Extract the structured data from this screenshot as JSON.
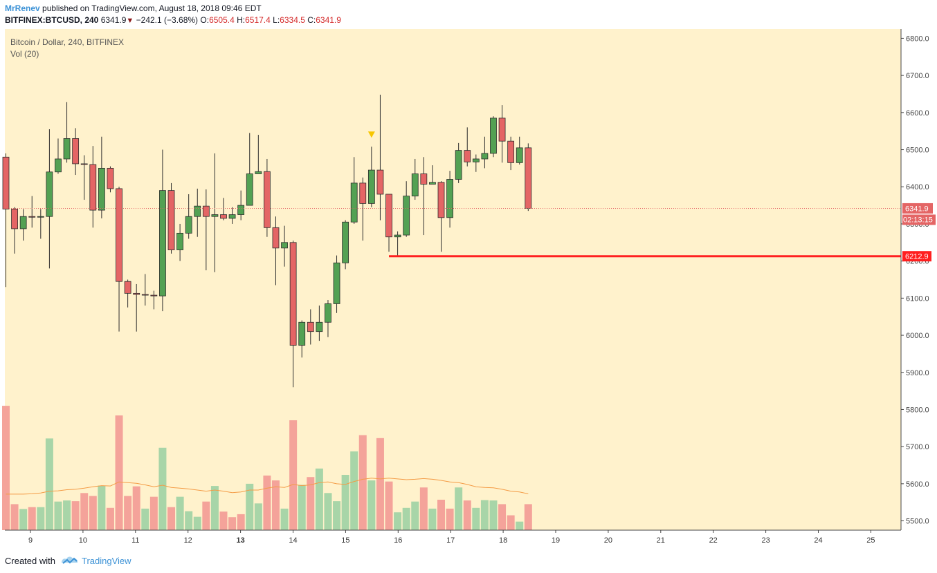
{
  "header": {
    "author": "MrRenev",
    "published": "published on TradingView.com, August 18, 2018 09:46 EDT",
    "symbol": "BITFINEX:BTCUSD, 240",
    "last": "6341.9",
    "change": "−242.1 (−3.68%)",
    "o_label": "O:",
    "o_value": "6505.4",
    "h_label": "H:",
    "h_value": "6517.4",
    "l_label": "L:",
    "l_value": "6334.5",
    "c_label": "C:",
    "c_value": "6341.9"
  },
  "legend": {
    "title": "Bitcoin / Dollar, 240, BITFINEX",
    "volume": "Vol (20)"
  },
  "footer": {
    "created_with": "Created with",
    "brand": "TradingView"
  },
  "colors": {
    "background": "#fff2cc",
    "up": "#53a153",
    "down": "#e46565",
    "vol_up": "#a8d5a8",
    "vol_down": "#f4a39a",
    "vol_ma": "#f49b45",
    "level": "#ff1f1f",
    "arrow": "#f7c600"
  },
  "chart_data": {
    "type": "candlestick",
    "title": "Bitcoin / Dollar, 240, BITFINEX",
    "ylim": [
      5475,
      6825
    ],
    "y_ticks": [
      "6800.0",
      "6700.0",
      "6600.0",
      "6500.0",
      "6400.0",
      "6300.0",
      "6200.0",
      "6100.0",
      "6000.0",
      "5900.0",
      "5800.0",
      "5700.0",
      "5600.0",
      "5500.0"
    ],
    "x_ticks": [
      "9",
      "10",
      "11",
      "12",
      "13",
      "14",
      "15",
      "16",
      "17",
      "18",
      "19",
      "20",
      "21",
      "22",
      "23",
      "24",
      "25"
    ],
    "last_price_label": "6341.9",
    "countdown_label": "02:13:15",
    "level_line": {
      "value": 6212.9,
      "label": "6212.9",
      "from_bar": 44
    },
    "marker": {
      "type": "arrow-down",
      "bar": 42
    },
    "candles": [
      {
        "o": 6480,
        "h": 6490,
        "l": 6130,
        "c": 6340
      },
      {
        "o": 6340,
        "h": 6345,
        "l": 6220,
        "c": 6287
      },
      {
        "o": 6287,
        "h": 6340,
        "l": 6255,
        "c": 6320
      },
      {
        "o": 6320,
        "h": 6375,
        "l": 6290,
        "c": 6318
      },
      {
        "o": 6318,
        "h": 6340,
        "l": 6260,
        "c": 6320
      },
      {
        "o": 6320,
        "h": 6555,
        "l": 6180,
        "c": 6440
      },
      {
        "o": 6440,
        "h": 6530,
        "l": 6435,
        "c": 6475
      },
      {
        "o": 6475,
        "h": 6628,
        "l": 6465,
        "c": 6530
      },
      {
        "o": 6530,
        "h": 6558,
        "l": 6432,
        "c": 6462
      },
      {
        "o": 6462,
        "h": 6485,
        "l": 6365,
        "c": 6460
      },
      {
        "o": 6460,
        "h": 6510,
        "l": 6290,
        "c": 6337
      },
      {
        "o": 6337,
        "h": 6535,
        "l": 6315,
        "c": 6450
      },
      {
        "o": 6450,
        "h": 6455,
        "l": 6385,
        "c": 6395
      },
      {
        "o": 6395,
        "h": 6400,
        "l": 6010,
        "c": 6145
      },
      {
        "o": 6145,
        "h": 6150,
        "l": 6075,
        "c": 6113
      },
      {
        "o": 6113,
        "h": 6138,
        "l": 6010,
        "c": 6110
      },
      {
        "o": 6110,
        "h": 6165,
        "l": 6080,
        "c": 6108
      },
      {
        "o": 6108,
        "h": 6120,
        "l": 6070,
        "c": 6106
      },
      {
        "o": 6106,
        "h": 6500,
        "l": 6065,
        "c": 6390
      },
      {
        "o": 6390,
        "h": 6410,
        "l": 6220,
        "c": 6230
      },
      {
        "o": 6230,
        "h": 6300,
        "l": 6200,
        "c": 6275
      },
      {
        "o": 6275,
        "h": 6380,
        "l": 6260,
        "c": 6320
      },
      {
        "o": 6320,
        "h": 6395,
        "l": 6265,
        "c": 6348
      },
      {
        "o": 6348,
        "h": 6393,
        "l": 6175,
        "c": 6320
      },
      {
        "o": 6320,
        "h": 6490,
        "l": 6170,
        "c": 6325
      },
      {
        "o": 6325,
        "h": 6370,
        "l": 6310,
        "c": 6315
      },
      {
        "o": 6315,
        "h": 6345,
        "l": 6300,
        "c": 6325
      },
      {
        "o": 6325,
        "h": 6390,
        "l": 6310,
        "c": 6350
      },
      {
        "o": 6350,
        "h": 6545,
        "l": 6355,
        "c": 6435
      },
      {
        "o": 6435,
        "h": 6540,
        "l": 6438,
        "c": 6441
      },
      {
        "o": 6441,
        "h": 6475,
        "l": 6265,
        "c": 6290
      },
      {
        "o": 6290,
        "h": 6320,
        "l": 6135,
        "c": 6235
      },
      {
        "o": 6235,
        "h": 6295,
        "l": 6185,
        "c": 6250
      },
      {
        "o": 6250,
        "h": 6255,
        "l": 5860,
        "c": 5973
      },
      {
        "o": 5973,
        "h": 6040,
        "l": 5940,
        "c": 6035
      },
      {
        "o": 6035,
        "h": 6070,
        "l": 5975,
        "c": 6010
      },
      {
        "o": 6010,
        "h": 6080,
        "l": 5985,
        "c": 6035
      },
      {
        "o": 6035,
        "h": 6095,
        "l": 5995,
        "c": 6085
      },
      {
        "o": 6085,
        "h": 6215,
        "l": 6060,
        "c": 6195
      },
      {
        "o": 6195,
        "h": 6310,
        "l": 6178,
        "c": 6305
      },
      {
        "o": 6305,
        "h": 6480,
        "l": 6300,
        "c": 6410
      },
      {
        "o": 6410,
        "h": 6425,
        "l": 6255,
        "c": 6355
      },
      {
        "o": 6355,
        "h": 6508,
        "l": 6345,
        "c": 6445
      },
      {
        "o": 6445,
        "h": 6648,
        "l": 6310,
        "c": 6380
      },
      {
        "o": 6380,
        "h": 6380,
        "l": 6225,
        "c": 6265
      },
      {
        "o": 6265,
        "h": 6280,
        "l": 6213,
        "c": 6270
      },
      {
        "o": 6270,
        "h": 6415,
        "l": 6265,
        "c": 6375
      },
      {
        "o": 6375,
        "h": 6475,
        "l": 6365,
        "c": 6435
      },
      {
        "o": 6435,
        "h": 6480,
        "l": 6270,
        "c": 6407
      },
      {
        "o": 6407,
        "h": 6458,
        "l": 6410,
        "c": 6412
      },
      {
        "o": 6412,
        "h": 6415,
        "l": 6225,
        "c": 6317
      },
      {
        "o": 6317,
        "h": 6443,
        "l": 6290,
        "c": 6420
      },
      {
        "o": 6420,
        "h": 6518,
        "l": 6410,
        "c": 6498
      },
      {
        "o": 6498,
        "h": 6560,
        "l": 6455,
        "c": 6467
      },
      {
        "o": 6467,
        "h": 6487,
        "l": 6440,
        "c": 6475
      },
      {
        "o": 6475,
        "h": 6535,
        "l": 6450,
        "c": 6490
      },
      {
        "o": 6490,
        "h": 6590,
        "l": 6480,
        "c": 6585
      },
      {
        "o": 6585,
        "h": 6620,
        "l": 6465,
        "c": 6523
      },
      {
        "o": 6523,
        "h": 6535,
        "l": 6445,
        "c": 6465
      },
      {
        "o": 6465,
        "h": 6535,
        "l": 6460,
        "c": 6505
      },
      {
        "o": 6505,
        "h": 6517,
        "l": 6335,
        "c": 6342
      }
    ],
    "volume": [
      {
        "v": 5810,
        "up": false
      },
      {
        "v": 5545,
        "up": false
      },
      {
        "v": 5532,
        "up": true
      },
      {
        "v": 5537,
        "up": false
      },
      {
        "v": 5537,
        "up": true
      },
      {
        "v": 5722,
        "up": true
      },
      {
        "v": 5552,
        "up": true
      },
      {
        "v": 5555,
        "up": true
      },
      {
        "v": 5553,
        "up": false
      },
      {
        "v": 5575,
        "up": false
      },
      {
        "v": 5567,
        "up": false
      },
      {
        "v": 5595,
        "up": true
      },
      {
        "v": 5535,
        "up": false
      },
      {
        "v": 5784,
        "up": false
      },
      {
        "v": 5567,
        "up": false
      },
      {
        "v": 5593,
        "up": false
      },
      {
        "v": 5533,
        "up": true
      },
      {
        "v": 5565,
        "up": false
      },
      {
        "v": 5697,
        "up": true
      },
      {
        "v": 5537,
        "up": false
      },
      {
        "v": 5565,
        "up": true
      },
      {
        "v": 5526,
        "up": true
      },
      {
        "v": 5511,
        "up": true
      },
      {
        "v": 5552,
        "up": false
      },
      {
        "v": 5594,
        "up": true
      },
      {
        "v": 5525,
        "up": false
      },
      {
        "v": 5510,
        "up": false
      },
      {
        "v": 5518,
        "up": false
      },
      {
        "v": 5600,
        "up": true
      },
      {
        "v": 5547,
        "up": true
      },
      {
        "v": 5622,
        "up": false
      },
      {
        "v": 5609,
        "up": false
      },
      {
        "v": 5533,
        "up": true
      },
      {
        "v": 5771,
        "up": false
      },
      {
        "v": 5597,
        "up": true
      },
      {
        "v": 5618,
        "up": false
      },
      {
        "v": 5641,
        "up": true
      },
      {
        "v": 5575,
        "up": true
      },
      {
        "v": 5553,
        "up": true
      },
      {
        "v": 5624,
        "up": true
      },
      {
        "v": 5687,
        "up": true
      },
      {
        "v": 5731,
        "up": false
      },
      {
        "v": 5609,
        "up": true
      },
      {
        "v": 5723,
        "up": false
      },
      {
        "v": 5606,
        "up": false
      },
      {
        "v": 5523,
        "up": true
      },
      {
        "v": 5535,
        "up": true
      },
      {
        "v": 5552,
        "up": true
      },
      {
        "v": 5590,
        "up": false
      },
      {
        "v": 5533,
        "up": true
      },
      {
        "v": 5557,
        "up": false
      },
      {
        "v": 5533,
        "up": false
      },
      {
        "v": 5590,
        "up": true
      },
      {
        "v": 5555,
        "up": false
      },
      {
        "v": 5535,
        "up": true
      },
      {
        "v": 5556,
        "up": true
      },
      {
        "v": 5555,
        "up": true
      },
      {
        "v": 5545,
        "up": false
      },
      {
        "v": 5515,
        "up": false
      },
      {
        "v": 5498,
        "up": true
      },
      {
        "v": 5545,
        "up": false
      }
    ],
    "vol_ma": [
      5572,
      5572,
      5572,
      5573,
      5575,
      5580,
      5581,
      5584,
      5585,
      5588,
      5592,
      5595,
      5594,
      5605,
      5603,
      5601,
      5597,
      5592,
      5596,
      5590,
      5588,
      5586,
      5583,
      5580,
      5583,
      5580,
      5576,
      5578,
      5583,
      5583,
      5588,
      5592,
      5590,
      5598,
      5595,
      5597,
      5603,
      5605,
      5600,
      5598,
      5606,
      5612,
      5615,
      5613,
      5615,
      5613,
      5611,
      5612,
      5614,
      5612,
      5609,
      5605,
      5603,
      5598,
      5592,
      5590,
      5589,
      5585,
      5580,
      5578,
      5573
    ]
  }
}
